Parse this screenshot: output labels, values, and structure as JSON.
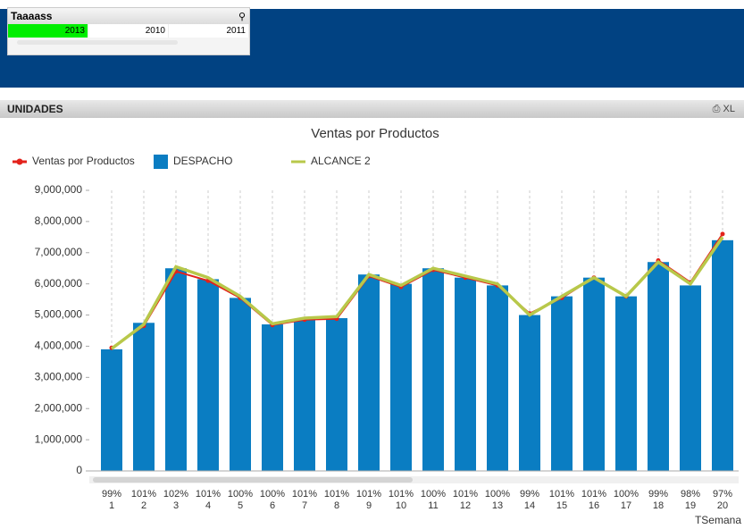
{
  "listbox": {
    "title": "Taaaass",
    "items": [
      "2013",
      "2010",
      "2011"
    ]
  },
  "panel": {
    "title": "UNIDADES",
    "icons": "XL"
  },
  "chart_data": {
    "type": "bar",
    "title": "Ventas por Productos",
    "x_label": "TSemana",
    "categories": [
      "1",
      "2",
      "3",
      "4",
      "5",
      "6",
      "7",
      "8",
      "9",
      "10",
      "11",
      "12",
      "13",
      "14",
      "15",
      "16",
      "17",
      "18",
      "19",
      "20"
    ],
    "category_sublabels": [
      "99%",
      "101%",
      "102%",
      "101%",
      "100%",
      "100%",
      "101%",
      "101%",
      "101%",
      "101%",
      "100%",
      "101%",
      "100%",
      "99%",
      "101%",
      "101%",
      "100%",
      "99%",
      "98%",
      "97%"
    ],
    "series": [
      {
        "name": "Ventas por Productos",
        "kind": "line",
        "color": "#e3221b",
        "markers": true,
        "values": [
          3950000,
          4650000,
          6400000,
          6100000,
          5550000,
          4680000,
          4850000,
          4880000,
          6250000,
          5900000,
          6450000,
          6200000,
          5950000,
          5050000,
          5550000,
          6200000,
          5600000,
          6750000,
          6050000,
          7600000
        ]
      },
      {
        "name": "DESPACHO",
        "kind": "bar",
        "color": "#0a7dc2",
        "values": [
          3900000,
          4750000,
          6500000,
          6150000,
          5550000,
          4700000,
          4850000,
          4900000,
          6300000,
          6000000,
          6500000,
          6200000,
          5950000,
          5000000,
          5600000,
          6200000,
          5600000,
          6700000,
          5950000,
          7400000
        ]
      },
      {
        "name": "ALCANCE 2",
        "kind": "line",
        "color": "#b8c84a",
        "markers": false,
        "values": [
          3920000,
          4700000,
          6550000,
          6200000,
          5600000,
          4720000,
          4900000,
          4950000,
          6300000,
          5950000,
          6500000,
          6250000,
          6000000,
          5000000,
          5600000,
          6200000,
          5600000,
          6700000,
          6000000,
          7500000
        ]
      }
    ],
    "ylim": [
      0,
      9000000
    ],
    "yticks": [
      0,
      {
        "value": 1000000,
        "label": "1,000,000"
      },
      {
        "value": 2000000,
        "label": "2,000,000"
      },
      {
        "value": 3000000,
        "label": "3,000,000"
      },
      {
        "value": 4000000,
        "label": "4,000,000"
      },
      {
        "value": 5000000,
        "label": "5,000,000"
      },
      {
        "value": 6000000,
        "label": "6,000,000"
      },
      {
        "value": 7000000,
        "label": "7,000,000"
      },
      {
        "value": 8000000,
        "label": "8,000,000"
      },
      {
        "value": 9000000,
        "label": "9,000,000"
      }
    ],
    "grid": true
  }
}
